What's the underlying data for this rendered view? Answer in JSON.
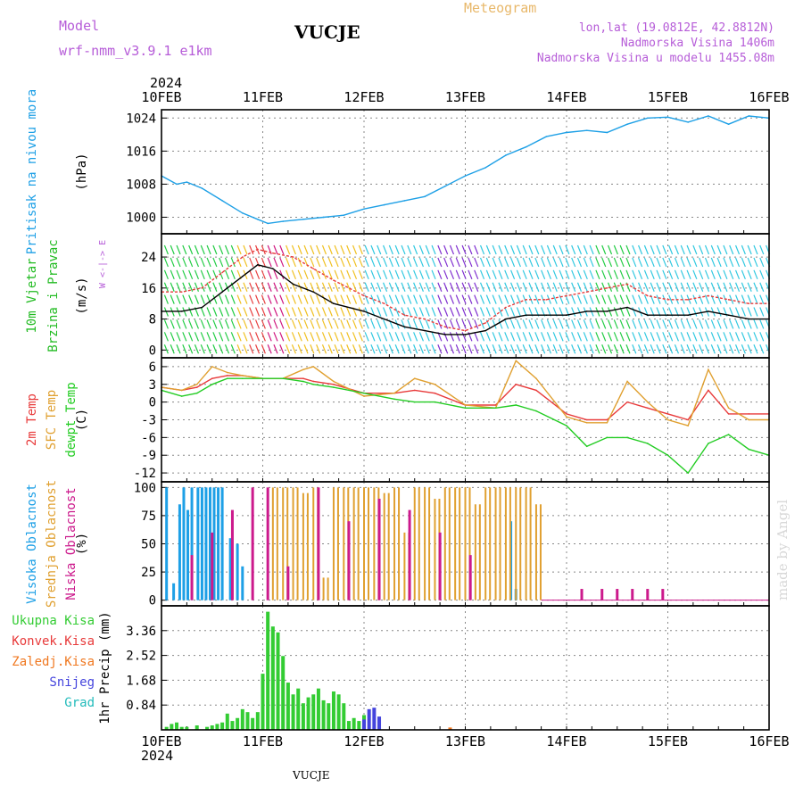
{
  "header": {
    "model_label": "Model",
    "model_name": "wrf-nmm_v3.9.1 e1km",
    "station": "VUCJE",
    "meteogram_label": "Meteogram",
    "coords": "lon,lat (19.0812E, 42.8812N)",
    "elevation": "Nadmorska Visina 1406m",
    "model_elevation": "Nadmorska Visina u modelu 1455.08m",
    "year_top": "2024",
    "year_bottom": "2024",
    "station_bottom": "VUCJE",
    "watermark": "made by Angel"
  },
  "colors": {
    "pressure": "#1ea0e6",
    "wind_label": "#22bb22",
    "temp2m": "#e83a3a",
    "sfc": "#e0a030",
    "dewpt": "#22cc22",
    "high_cloud": "#1ea0e6",
    "mid_cloud": "#e0a030",
    "low_cloud": "#cc1a8c",
    "total_precip": "#33cc33",
    "conv_precip": "#e83a3a",
    "frozen_precip": "#f07820",
    "snow": "#4444dd",
    "hail": "#22bbbb",
    "header_purple": "#b65cd8",
    "header_orange": "#e8b86a"
  },
  "chart_data": [
    {
      "type": "line",
      "id": "pressure",
      "ylabel_lines": [
        "Pritisak na nivou mora",
        "(hPa)"
      ],
      "yticks": [
        1000,
        1008,
        1016,
        1024
      ],
      "ylim": [
        996,
        1026
      ],
      "x_ticks": [
        "10FEB",
        "11FEB",
        "12FEB",
        "13FEB",
        "14FEB",
        "15FEB",
        "16FEB"
      ],
      "grid": true,
      "series": [
        {
          "x": [
            0,
            0.15,
            0.25,
            0.4,
            0.6,
            0.8,
            0.95,
            1.05,
            1.2,
            1.4,
            1.6,
            1.8,
            2.0,
            2.2,
            2.4,
            2.6,
            2.8,
            3.0,
            3.2,
            3.4,
            3.6,
            3.8,
            4.0,
            4.2,
            4.4,
            4.6,
            4.8,
            5.0,
            5.2,
            5.4,
            5.6,
            5.8,
            6.0
          ],
          "y": [
            1010,
            1008,
            1008.5,
            1007,
            1004,
            1001,
            999.5,
            998.5,
            999,
            999.5,
            1000,
            1000.5,
            1002,
            1003,
            1004,
            1005,
            1007.5,
            1010,
            1012,
            1015,
            1017,
            1019.5,
            1020.5,
            1021,
            1020.5,
            1022.5,
            1024,
            1024.2,
            1023,
            1024.5,
            1022.5,
            1024.5,
            1024
          ]
        }
      ]
    },
    {
      "type": "line",
      "id": "wind",
      "ylabel_lines": [
        "10m Vjetar",
        "Brzina i Pravac",
        "(m/s)"
      ],
      "compass": "W <-|-> E",
      "yticks": [
        0,
        8,
        16,
        24
      ],
      "ylim": [
        -2,
        30
      ],
      "grid": true,
      "series": [
        {
          "name": "speed",
          "x": [
            0,
            0.2,
            0.4,
            0.6,
            0.8,
            0.95,
            1.1,
            1.3,
            1.5,
            1.7,
            2.0,
            2.2,
            2.4,
            2.6,
            2.8,
            3.0,
            3.2,
            3.4,
            3.6,
            3.8,
            4.0,
            4.2,
            4.4,
            4.6,
            4.8,
            5.0,
            5.2,
            5.4,
            5.6,
            5.8,
            6.0
          ],
          "y": [
            10,
            10,
            11,
            15,
            19,
            22,
            21,
            17,
            15,
            12,
            10,
            8,
            6,
            5,
            4,
            4,
            5,
            8,
            9,
            9,
            9,
            10,
            10,
            11,
            9,
            9,
            9,
            10,
            9,
            8,
            8
          ]
        },
        {
          "name": "gust",
          "x": [
            0,
            0.2,
            0.4,
            0.6,
            0.8,
            0.95,
            1.1,
            1.3,
            1.5,
            1.7,
            2.0,
            2.2,
            2.4,
            2.6,
            2.8,
            3.0,
            3.2,
            3.4,
            3.6,
            3.8,
            4.0,
            4.2,
            4.4,
            4.6,
            4.8,
            5.0,
            5.2,
            5.4,
            5.6,
            5.8,
            6.0
          ],
          "y": [
            15,
            15,
            16,
            20,
            24,
            26,
            25,
            24,
            21,
            18,
            14,
            12,
            9,
            8,
            6,
            5,
            7,
            11,
            13,
            13,
            14,
            15,
            16,
            17,
            14,
            13,
            13,
            14,
            13,
            12,
            12
          ]
        }
      ]
    },
    {
      "type": "line",
      "id": "temperature",
      "ylabel_lines": [
        "2m Temp",
        "SFC Temp",
        "dewpt Temp",
        "(C)"
      ],
      "yticks": [
        6,
        3,
        0,
        -3,
        -6,
        -9,
        -12
      ],
      "ylim": [
        -13.5,
        7.5
      ],
      "grid": true,
      "series": [
        {
          "name": "2m Temp",
          "x": [
            0,
            0.2,
            0.35,
            0.5,
            0.65,
            0.8,
            1.0,
            1.2,
            1.4,
            1.5,
            1.7,
            2.0,
            2.3,
            2.5,
            2.7,
            3.0,
            3.3,
            3.5,
            3.7,
            4.0,
            4.2,
            4.4,
            4.6,
            4.8,
            5.0,
            5.2,
            5.4,
            5.6,
            5.8,
            6.0
          ],
          "y": [
            2.5,
            2,
            2.5,
            4,
            4.5,
            4.5,
            4,
            4,
            4,
            3.5,
            3,
            1.5,
            1.5,
            2,
            1.5,
            -0.5,
            -0.5,
            3,
            2,
            -2,
            -3,
            -3,
            0,
            -1,
            -2,
            -3,
            2,
            -2,
            -2,
            -2
          ]
        },
        {
          "name": "SFC Temp",
          "x": [
            0,
            0.2,
            0.35,
            0.5,
            0.65,
            0.8,
            1.0,
            1.2,
            1.4,
            1.5,
            1.7,
            2.0,
            2.3,
            2.5,
            2.7,
            3.0,
            3.3,
            3.5,
            3.7,
            4.0,
            4.2,
            4.4,
            4.6,
            4.8,
            5.0,
            5.2,
            5.4,
            5.6,
            5.8,
            6.0
          ],
          "y": [
            2.5,
            2,
            3,
            6,
            5,
            4.5,
            4,
            4,
            5.5,
            6,
            3.5,
            1,
            1.5,
            4,
            3,
            -0.5,
            -1,
            7,
            4,
            -2.5,
            -3.5,
            -3.5,
            3.5,
            0,
            -3,
            -4,
            5.5,
            -1,
            -3,
            -3
          ]
        },
        {
          "name": "dewpt Temp",
          "x": [
            0,
            0.2,
            0.35,
            0.5,
            0.65,
            0.8,
            1.0,
            1.2,
            1.4,
            1.5,
            1.7,
            2.0,
            2.3,
            2.5,
            2.7,
            3.0,
            3.3,
            3.5,
            3.7,
            4.0,
            4.2,
            4.4,
            4.6,
            4.8,
            5.0,
            5.2,
            5.4,
            5.6,
            5.8,
            6.0
          ],
          "y": [
            2,
            1,
            1.5,
            3,
            4,
            4,
            4,
            4,
            3.5,
            3,
            2.5,
            1.5,
            0.5,
            0,
            0,
            -1,
            -1,
            -0.5,
            -1.5,
            -4,
            -7.5,
            -6,
            -6,
            -7,
            -9,
            -12,
            -7,
            -5.5,
            -8,
            -9
          ]
        }
      ]
    },
    {
      "type": "bar",
      "id": "clouds",
      "ylabel_lines": [
        "Visoka Oblacnost",
        "Srednja Oblacnost",
        "Niska Oblacnost",
        "(%)"
      ],
      "yticks": [
        0,
        25,
        50,
        75,
        100
      ],
      "ylim": [
        -5,
        105
      ],
      "grid": true,
      "series": [
        {
          "name": "Visoka Oblacnost",
          "x": [
            0.05,
            0.12,
            0.18,
            0.22,
            0.26,
            0.3,
            0.36,
            0.4,
            0.44,
            0.48,
            0.52,
            0.56,
            0.6,
            0.68,
            0.75,
            0.8,
            3.45,
            3.5
          ],
          "y": [
            100,
            15,
            85,
            100,
            80,
            100,
            100,
            100,
            100,
            100,
            100,
            100,
            100,
            55,
            50,
            30,
            70,
            10
          ]
        },
        {
          "name": "Srednja Oblacnost",
          "x": [
            1.1,
            1.2,
            1.3,
            1.4,
            1.5,
            1.6,
            1.7,
            1.8,
            1.9,
            2.0,
            2.1,
            2.2,
            2.3,
            2.4,
            2.5,
            2.6,
            2.7,
            2.8,
            2.9,
            3.0,
            3.1,
            3.2,
            3.3,
            3.4,
            3.5,
            3.6,
            3.7
          ],
          "y": [
            100,
            100,
            100,
            95,
            100,
            20,
            100,
            100,
            100,
            100,
            100,
            95,
            100,
            60,
            100,
            100,
            90,
            100,
            100,
            100,
            85,
            100,
            100,
            100,
            100,
            100,
            85
          ]
        },
        {
          "name": "Niska Oblacnost",
          "x": [
            0.3,
            0.5,
            0.7,
            0.9,
            1.05,
            1.25,
            1.55,
            1.85,
            2.15,
            2.45,
            2.75,
            3.05,
            4.15,
            4.35,
            4.5,
            4.65,
            4.8,
            4.95
          ],
          "y": [
            40,
            60,
            80,
            100,
            100,
            30,
            100,
            70,
            90,
            80,
            60,
            40,
            10,
            10,
            10,
            10,
            10,
            10
          ]
        }
      ]
    },
    {
      "type": "bar",
      "id": "precip",
      "ylabel_lines": [
        "1hr Precip (mm)"
      ],
      "legend": [
        "Ukupna Kisa",
        "Konvek.Kisa",
        "Zaledj.Kisa",
        "Snijeg",
        "Grad"
      ],
      "yticks": [
        0.84,
        1.68,
        2.52,
        3.36
      ],
      "ylim": [
        0,
        4.2
      ],
      "grid": true,
      "series": [
        {
          "name": "Ukupna Kisa",
          "x": [
            0.05,
            0.1,
            0.15,
            0.2,
            0.25,
            0.35,
            0.45,
            0.5,
            0.55,
            0.6,
            0.65,
            0.7,
            0.75,
            0.8,
            0.85,
            0.9,
            0.95,
            1.0,
            1.05,
            1.1,
            1.15,
            1.2,
            1.25,
            1.3,
            1.35,
            1.4,
            1.45,
            1.5,
            1.55,
            1.6,
            1.65,
            1.7,
            1.75,
            1.8,
            1.85,
            1.9,
            1.95,
            2.0
          ],
          "y": [
            0.1,
            0.2,
            0.25,
            0.1,
            0.1,
            0.15,
            0.1,
            0.15,
            0.2,
            0.25,
            0.55,
            0.3,
            0.4,
            0.7,
            0.6,
            0.4,
            0.6,
            1.9,
            4.0,
            3.5,
            3.3,
            2.5,
            1.6,
            1.2,
            1.4,
            0.9,
            1.1,
            1.2,
            1.4,
            1.0,
            0.9,
            1.3,
            1.2,
            0.9,
            0.3,
            0.4,
            0.3,
            0.5
          ]
        },
        {
          "name": "Snijeg",
          "x": [
            2.0,
            2.05,
            2.1,
            2.15
          ],
          "y": [
            0.35,
            0.7,
            0.75,
            0.45
          ]
        },
        {
          "name": "Zaledj.Kisa",
          "x": [
            2.85
          ],
          "y": [
            0.08
          ]
        }
      ]
    }
  ]
}
